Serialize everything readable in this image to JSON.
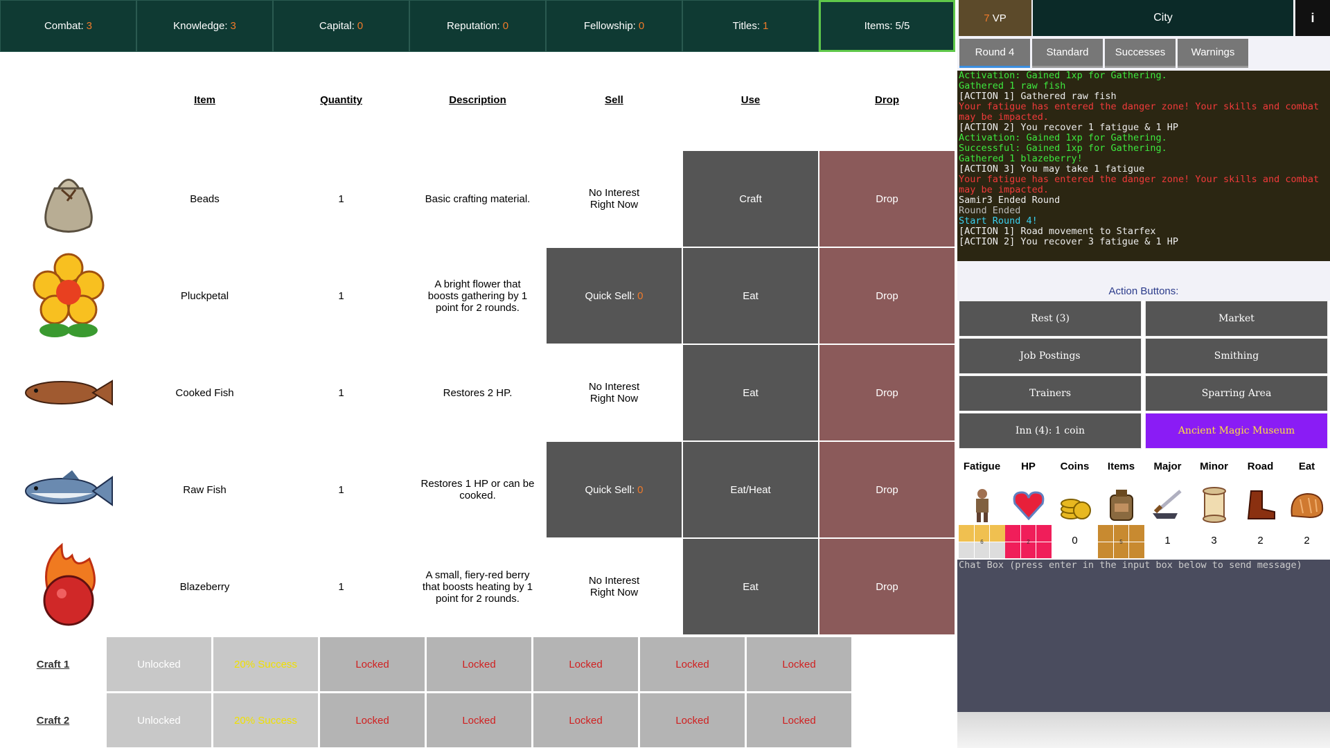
{
  "stats": [
    {
      "label": "Combat:",
      "value": 3
    },
    {
      "label": "Knowledge:",
      "value": 3
    },
    {
      "label": "Capital:",
      "value": 0
    },
    {
      "label": "Reputation:",
      "value": 0
    },
    {
      "label": "Fellowship:",
      "value": 0
    },
    {
      "label": "Titles:",
      "value": 1
    },
    {
      "label": "Items:",
      "value": "5/5"
    }
  ],
  "vp": {
    "value": 7,
    "label": "VP"
  },
  "location": "City",
  "info": "i",
  "tabs": [
    "Round 4",
    "Standard",
    "Successes",
    "Warnings"
  ],
  "log": [
    {
      "text": "Activation: Gained 1xp for Gathering.",
      "color": "#3ee83e"
    },
    {
      "text": "Gathered 1 raw fish",
      "color": "#3ee83e"
    },
    {
      "text": "[ACTION 1] Gathered raw fish",
      "color": "#eeeeee"
    },
    {
      "text": "Your fatigue has entered the danger zone! Your skills and combat may be impacted.",
      "color": "#f03a3a"
    },
    {
      "text": "[ACTION 2] You recover 1 fatigue & 1 HP",
      "color": "#eeeeee"
    },
    {
      "text": "Activation: Gained 1xp for Gathering.",
      "color": "#3ee83e"
    },
    {
      "text": "Successful: Gained 1xp for Gathering.",
      "color": "#3ee83e"
    },
    {
      "text": "Gathered 1 blazeberry!",
      "color": "#3ee83e"
    },
    {
      "text": "[ACTION 3] You may take 1 fatigue",
      "color": "#eeeeee"
    },
    {
      "text": "Your fatigue has entered the danger zone! Your skills and combat may be impacted.",
      "color": "#f03a3a"
    },
    {
      "text": "Samir3 Ended Round",
      "color": "#eeeeee"
    },
    {
      "text": "Round Ended",
      "color": "#bbbbbb"
    },
    {
      "text": "Start Round 4!",
      "color": "#3ad0f0"
    },
    {
      "text": "[ACTION 1] Road movement to Starfex",
      "color": "#eeeeee"
    },
    {
      "text": "[ACTION 2] You recover 3 fatigue & 1 HP",
      "color": "#eeeeee"
    }
  ],
  "action_title": "Action Buttons:",
  "actions": [
    "Rest (3)",
    "Market",
    "Job Postings",
    "Smithing",
    "Trainers",
    "Sparring Area",
    "Inn (4): 1 coin",
    "Ancient Magic Museum"
  ],
  "resources": [
    {
      "name": "Fatigue",
      "value": 6
    },
    {
      "name": "HP",
      "value": 2
    },
    {
      "name": "Coins",
      "value": 0
    },
    {
      "name": "Items",
      "value": 5
    },
    {
      "name": "Major",
      "value": 1
    },
    {
      "name": "Minor",
      "value": 3
    },
    {
      "name": "Road",
      "value": 2
    },
    {
      "name": "Eat",
      "value": 2
    }
  ],
  "chat_placeholder": "Chat Box (press enter in the input box below to send message)",
  "inventory": {
    "headers": [
      "Item",
      "Quantity",
      "Description",
      "Sell",
      "Use",
      "Drop"
    ],
    "rows": [
      {
        "name": "Beads",
        "quantity": 1,
        "description": "Basic crafting material.",
        "sell": "No Interest\nRight Now",
        "use": "Craft",
        "drop": "Drop"
      },
      {
        "name": "Pluckpetal",
        "quantity": 1,
        "description": "A bright flower that boosts gathering by 1 point for 2 rounds.",
        "sell": {
          "label": "Quick Sell:",
          "value": 0
        },
        "use": "Eat",
        "drop": "Drop"
      },
      {
        "name": "Cooked Fish",
        "quantity": 1,
        "description": "Restores 2 HP.",
        "sell": "No Interest\nRight Now",
        "use": "Eat",
        "drop": "Drop"
      },
      {
        "name": "Raw Fish",
        "quantity": 1,
        "description": "Restores 1 HP or can be cooked.",
        "sell": {
          "label": "Quick Sell:",
          "value": 0
        },
        "use": "Eat/Heat",
        "drop": "Drop"
      },
      {
        "name": "Blazeberry",
        "quantity": 1,
        "description": "A small, fiery-red berry that boosts heating by 1 point for 2 rounds.",
        "sell": "No Interest\nRight Now",
        "use": "Eat",
        "drop": "Drop"
      }
    ]
  },
  "crafts": [
    {
      "label": "Craft 1",
      "slots": [
        "Unlocked",
        "20% Success",
        "Locked",
        "Locked",
        "Locked",
        "Locked",
        "Locked"
      ]
    },
    {
      "label": "Craft 2",
      "slots": [
        "Unlocked",
        "20% Success",
        "Locked",
        "Locked",
        "Locked",
        "Locked",
        "Locked"
      ]
    }
  ]
}
